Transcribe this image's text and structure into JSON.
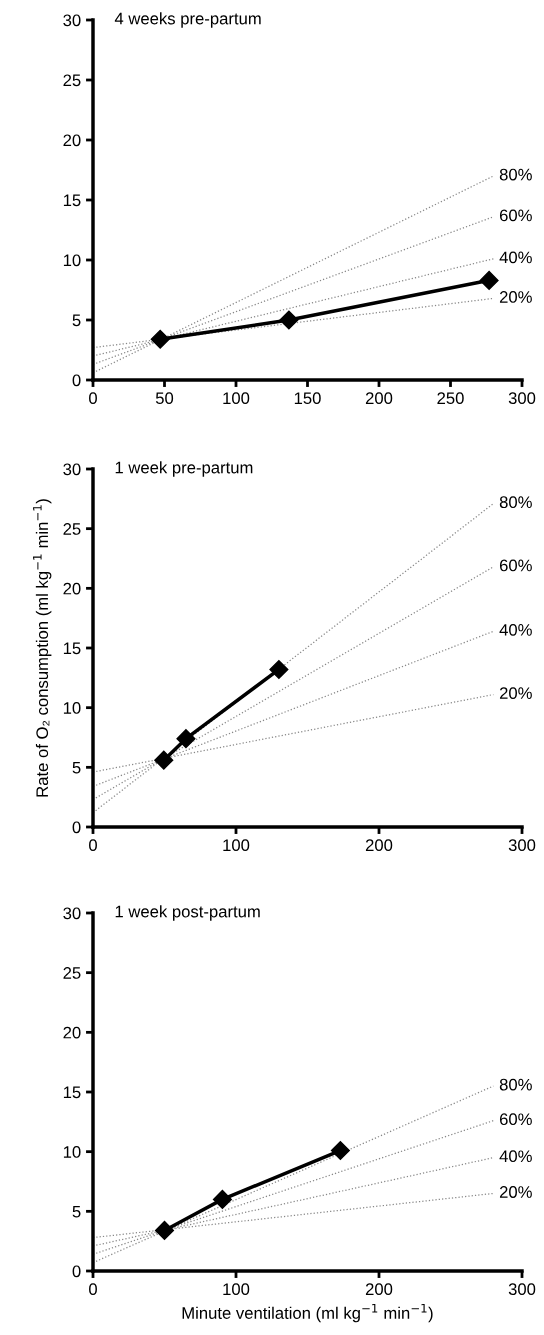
{
  "chart_data": [
    {
      "type": "line",
      "title": "4 weeks pre-partum",
      "xlim": [
        0,
        300
      ],
      "xticks": [
        0,
        50,
        100,
        150,
        200,
        250,
        300
      ],
      "ylim": [
        0,
        30
      ],
      "yticks": [
        0,
        5,
        10,
        15,
        20,
        25,
        30
      ],
      "grid": false,
      "legend": false,
      "series": [
        {
          "name": "80%",
          "color": "#888888",
          "line_style": "dotted",
          "marker": "none",
          "x": [
            0,
            280
          ],
          "values": [
            0.6,
            17
          ]
        },
        {
          "name": "60%",
          "color": "#888888",
          "line_style": "dotted",
          "marker": "none",
          "x": [
            0,
            280
          ],
          "values": [
            1.3,
            13.6
          ]
        },
        {
          "name": "40%",
          "color": "#888888",
          "line_style": "dotted",
          "marker": "none",
          "x": [
            0,
            280
          ],
          "values": [
            2.0,
            10.1
          ]
        },
        {
          "name": "20%",
          "color": "#888888",
          "line_style": "dotted",
          "marker": "none",
          "x": [
            0,
            280
          ],
          "values": [
            2.7,
            6.8
          ]
        },
        {
          "color": "#000000",
          "line_style": "solid",
          "marker": "diamond",
          "x": [
            47,
            137,
            277
          ],
          "values": [
            3.4,
            5.0,
            8.3
          ]
        }
      ]
    },
    {
      "type": "line",
      "title": "1 week pre-partum",
      "ylabel": "Rate of O₂ consumption (ml kg$^{−1}$ min$^{−1}$)",
      "xlim": [
        0,
        300
      ],
      "xticks": [
        0,
        100,
        200,
        300
      ],
      "ylim": [
        0,
        30
      ],
      "yticks": [
        0,
        5,
        10,
        15,
        20,
        25,
        30
      ],
      "grid": false,
      "legend": false,
      "series": [
        {
          "name": "80%",
          "color": "#888888",
          "line_style": "dotted",
          "marker": "none",
          "x": [
            0,
            280
          ],
          "values": [
            1.2,
            27.1
          ]
        },
        {
          "name": "60%",
          "color": "#888888",
          "line_style": "dotted",
          "marker": "none",
          "x": [
            0,
            280
          ],
          "values": [
            2.3,
            21.8
          ]
        },
        {
          "name": "40%",
          "color": "#888888",
          "line_style": "dotted",
          "marker": "none",
          "x": [
            0,
            280
          ],
          "values": [
            3.4,
            16.4
          ]
        },
        {
          "name": "20%",
          "color": "#888888",
          "line_style": "dotted",
          "marker": "none",
          "x": [
            0,
            280
          ],
          "values": [
            4.6,
            11.1
          ]
        },
        {
          "color": "#000000",
          "line_style": "solid",
          "marker": "diamond",
          "x": [
            49.5,
            65,
            130
          ],
          "values": [
            5.6,
            7.4,
            13.2
          ]
        }
      ]
    },
    {
      "type": "line",
      "title": "1 week post-partum",
      "xlabel": "Minute ventilation (ml kg$^{−1}$ min$^{−1}$)",
      "xlim": [
        0,
        300
      ],
      "xticks": [
        0,
        100,
        200,
        300
      ],
      "ylim": [
        0,
        30
      ],
      "yticks": [
        0,
        5,
        10,
        15,
        20,
        25,
        30
      ],
      "grid": false,
      "legend": false,
      "series": [
        {
          "name": "80%",
          "color": "#888888",
          "line_style": "dotted",
          "marker": "none",
          "x": [
            0,
            280
          ],
          "values": [
            0.7,
            15.5
          ]
        },
        {
          "name": "60%",
          "color": "#888888",
          "line_style": "dotted",
          "marker": "none",
          "x": [
            0,
            280
          ],
          "values": [
            1.4,
            12.6
          ]
        },
        {
          "name": "40%",
          "color": "#888888",
          "line_style": "dotted",
          "marker": "none",
          "x": [
            0,
            280
          ],
          "values": [
            2.1,
            9.5
          ]
        },
        {
          "name": "20%",
          "color": "#888888",
          "line_style": "dotted",
          "marker": "none",
          "x": [
            0,
            280
          ],
          "values": [
            2.8,
            6.5
          ]
        },
        {
          "color": "#000000",
          "line_style": "solid",
          "marker": "diamond",
          "x": [
            50,
            90.5,
            173
          ],
          "values": [
            3.4,
            6.0,
            10.1
          ]
        }
      ]
    }
  ]
}
